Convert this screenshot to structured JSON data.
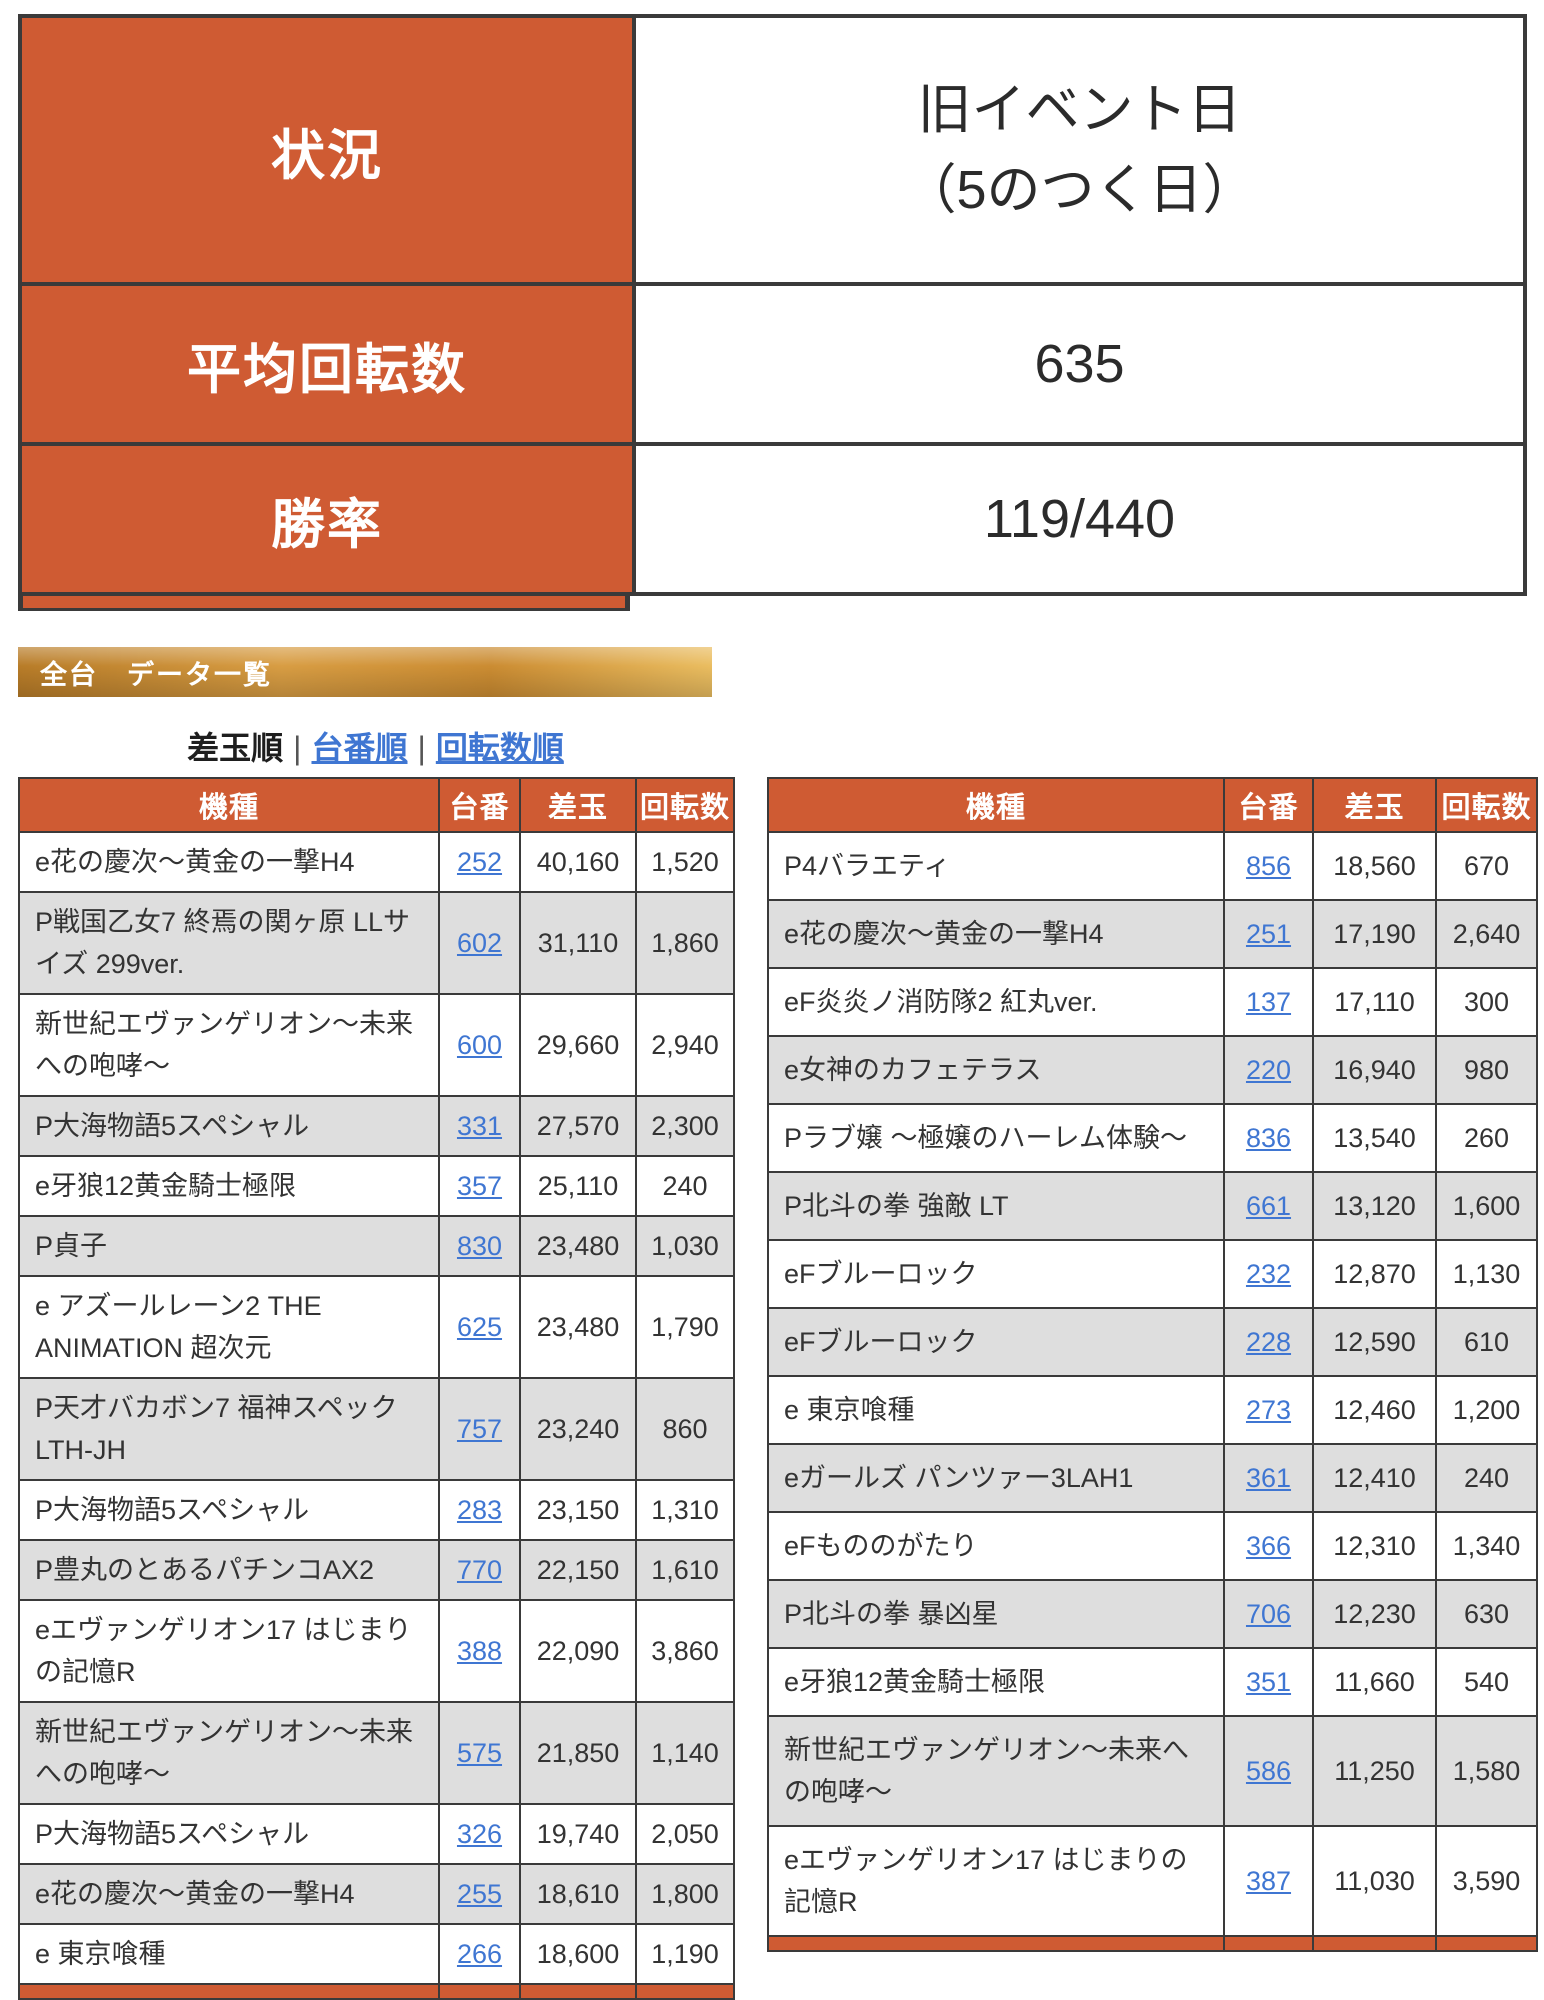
{
  "summary": {
    "rows": [
      {
        "label": "状況",
        "value": "旧イベント日\n（5のつく日）"
      },
      {
        "label": "平均回転数",
        "value": "635"
      },
      {
        "label": "勝率",
        "value": "119/440"
      }
    ]
  },
  "banner": {
    "title": "全台　データ一覧"
  },
  "sort": {
    "current": "差玉順",
    "separator": "|",
    "links": [
      "台番順",
      "回転数順"
    ]
  },
  "columns": [
    "機種",
    "台番",
    "差玉",
    "回転数"
  ],
  "left_table": {
    "rows": [
      {
        "model": "e花の慶次〜黄金の一撃H4",
        "unit": "252",
        "diff": "40,160",
        "spins": "1,520"
      },
      {
        "model": "P戦国乙女7 終焉の関ヶ原 LLサイズ 299ver.",
        "unit": "602",
        "diff": "31,110",
        "spins": "1,860"
      },
      {
        "model": "新世紀エヴァンゲリオン〜未来への咆哮〜",
        "unit": "600",
        "diff": "29,660",
        "spins": "2,940"
      },
      {
        "model": "P大海物語5スペシャル",
        "unit": "331",
        "diff": "27,570",
        "spins": "2,300"
      },
      {
        "model": "e牙狼12黄金騎士極限",
        "unit": "357",
        "diff": "25,110",
        "spins": "240"
      },
      {
        "model": "P貞子",
        "unit": "830",
        "diff": "23,480",
        "spins": "1,030"
      },
      {
        "model": "e アズールレーン2 THE ANIMATION 超次元",
        "unit": "625",
        "diff": "23,480",
        "spins": "1,790"
      },
      {
        "model": "P天才バカボン7 福神スペック LTH-JH",
        "unit": "757",
        "diff": "23,240",
        "spins": "860"
      },
      {
        "model": "P大海物語5スペシャル",
        "unit": "283",
        "diff": "23,150",
        "spins": "1,310"
      },
      {
        "model": "P豊丸のとあるパチンコAX2",
        "unit": "770",
        "diff": "22,150",
        "spins": "1,610"
      },
      {
        "model": "eエヴァンゲリオン17 はじまりの記憶R",
        "unit": "388",
        "diff": "22,090",
        "spins": "3,860"
      },
      {
        "model": "新世紀エヴァンゲリオン〜未来への咆哮〜",
        "unit": "575",
        "diff": "21,850",
        "spins": "1,140"
      },
      {
        "model": "P大海物語5スペシャル",
        "unit": "326",
        "diff": "19,740",
        "spins": "2,050"
      },
      {
        "model": "e花の慶次〜黄金の一撃H4",
        "unit": "255",
        "diff": "18,610",
        "spins": "1,800"
      },
      {
        "model": "e 東京喰種",
        "unit": "266",
        "diff": "18,600",
        "spins": "1,190"
      }
    ]
  },
  "right_table": {
    "rows": [
      {
        "model": "P4バラエティ",
        "unit": "856",
        "diff": "18,560",
        "spins": "670"
      },
      {
        "model": "e花の慶次〜黄金の一撃H4",
        "unit": "251",
        "diff": "17,190",
        "spins": "2,640"
      },
      {
        "model": "eF炎炎ノ消防隊2 紅丸ver.",
        "unit": "137",
        "diff": "17,110",
        "spins": "300"
      },
      {
        "model": "e女神のカフェテラス",
        "unit": "220",
        "diff": "16,940",
        "spins": "980"
      },
      {
        "model": "Pラブ嬢 〜極嬢のハーレム体験〜",
        "unit": "836",
        "diff": "13,540",
        "spins": "260"
      },
      {
        "model": "P北斗の拳 強敵 LT",
        "unit": "661",
        "diff": "13,120",
        "spins": "1,600"
      },
      {
        "model": "eFブルーロック",
        "unit": "232",
        "diff": "12,870",
        "spins": "1,130"
      },
      {
        "model": "eFブルーロック",
        "unit": "228",
        "diff": "12,590",
        "spins": "610"
      },
      {
        "model": "e 東京喰種",
        "unit": "273",
        "diff": "12,460",
        "spins": "1,200"
      },
      {
        "model": "eガールズ パンツァー3LAH1",
        "unit": "361",
        "diff": "12,410",
        "spins": "240"
      },
      {
        "model": "eFもののがたり",
        "unit": "366",
        "diff": "12,310",
        "spins": "1,340"
      },
      {
        "model": "P北斗の拳 暴凶星",
        "unit": "706",
        "diff": "12,230",
        "spins": "630"
      },
      {
        "model": "e牙狼12黄金騎士極限",
        "unit": "351",
        "diff": "11,660",
        "spins": "540"
      },
      {
        "model": "新世紀エヴァンゲリオン〜未来への咆哮〜",
        "unit": "586",
        "diff": "11,250",
        "spins": "1,580"
      },
      {
        "model": "eエヴァンゲリオン17 はじまりの記憶R",
        "unit": "387",
        "diff": "11,030",
        "spins": "3,590"
      }
    ]
  },
  "colors": {
    "accent_orange": "#cf5b33",
    "row_alt_gray": "#dedede",
    "link_blue": "#3f76d2",
    "banner_gold": "#d89d43",
    "border_dark": "#3a3a3a"
  }
}
